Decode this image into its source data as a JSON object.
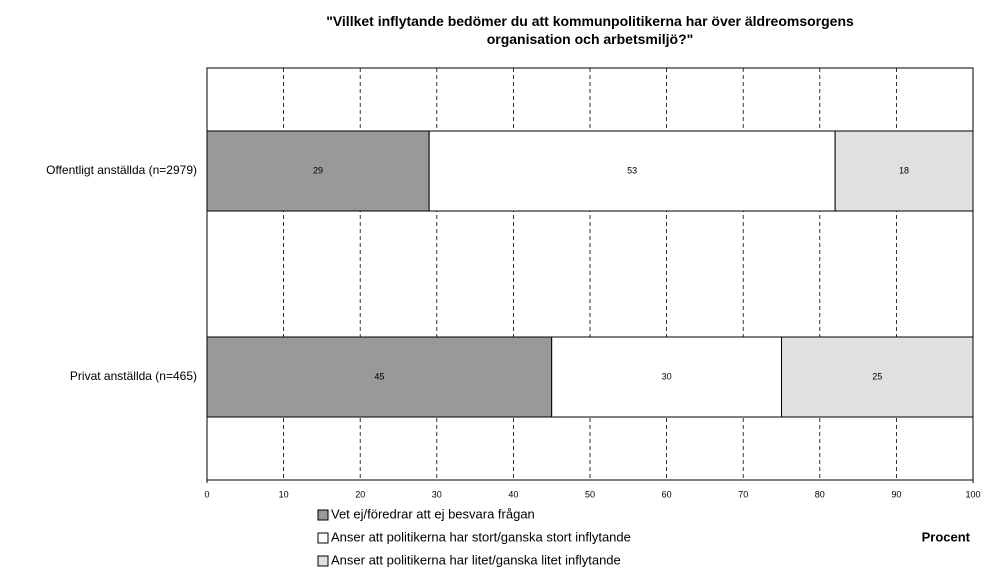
{
  "chart_data": {
    "type": "stacked-bar-horizontal",
    "title": "\"Villket inflytande bedömer du att kommunpolitikerna har över äldreomsorgens organisation och arbetsmiljö?\"",
    "categories": [
      "Offentligt anställda  (n=2979)",
      "Privat anställda  (n=465)"
    ],
    "series": [
      {
        "name": "Vet ej/föredrar att ej besvara frågan",
        "color": "#999999",
        "values": [
          29,
          45
        ]
      },
      {
        "name": "Anser att politikerna har stort/ganska stort inflytande",
        "color": "#ffffff",
        "values": [
          53,
          30
        ]
      },
      {
        "name": "Anser att politikerna har litet/ganska litet inflytande",
        "color": "#e0e0e0",
        "values": [
          18,
          25
        ]
      }
    ],
    "xlabel": "Procent",
    "xlim": [
      0,
      100
    ],
    "xticks": [
      0,
      10,
      20,
      30,
      40,
      50,
      60,
      70,
      80,
      90,
      100
    ],
    "grid": true
  }
}
